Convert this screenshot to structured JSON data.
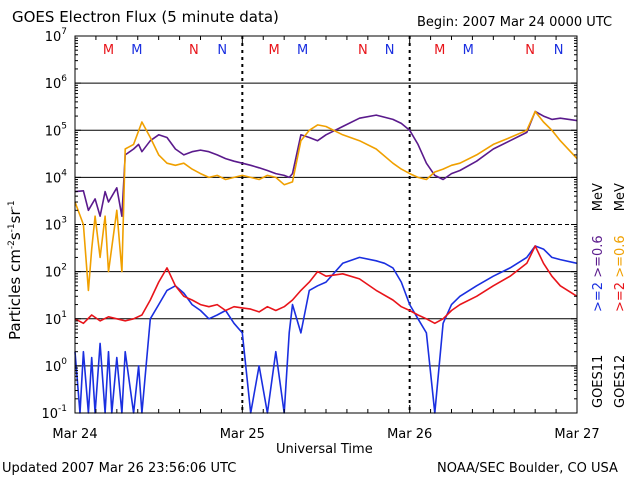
{
  "header": {
    "title": "GOES Electron Flux (5 minute data)",
    "begin": "Begin: 2007 Mar 24 0000 UTC"
  },
  "footer": {
    "updated": "Updated 2007 Mar 26 23:56:06 UTC",
    "credit": "NOAA/SEC Boulder, CO USA"
  },
  "legend": {
    "goes11": "GOES11",
    "goes12": "GOES12",
    "mev_lo": "MeV",
    "mev_hi": "MeV",
    "ch2_blue": ">=2",
    "ch06_purple": ">=0.6",
    "ch2_red": ">=2",
    "ch06_orange": ">=0.6"
  },
  "colors": {
    "goes11_high": "#1a2fe0",
    "goes11_low": "#5a1a8c",
    "goes12_high": "#e8141a",
    "goes12_low": "#f0a000",
    "marker_m": "#e8141a",
    "marker_n": "#1a2fe0"
  },
  "chart_data": {
    "type": "line",
    "title": "GOES Electron Flux (5 minute data)",
    "xlabel": "Universal Time",
    "ylabel": "Particles cm-2s-1sr-1",
    "x_unit": "days since 2007 Mar 24 0000 UTC",
    "xlim": [
      0,
      3
    ],
    "ylim_log10": [
      -1,
      7
    ],
    "y_scale": "log",
    "x_ticks": [
      {
        "x": 0,
        "label": "Mar 24"
      },
      {
        "x": 1,
        "label": "Mar 25"
      },
      {
        "x": 2,
        "label": "Mar 26"
      },
      {
        "x": 3,
        "label": "Mar 27"
      }
    ],
    "y_ticks": [
      {
        "exp": -1,
        "base": "10",
        "sup": "-1"
      },
      {
        "exp": 0,
        "base": "10",
        "sup": "0"
      },
      {
        "exp": 1,
        "base": "10",
        "sup": "1"
      },
      {
        "exp": 2,
        "base": "10",
        "sup": "2"
      },
      {
        "exp": 3,
        "base": "10",
        "sup": "3"
      },
      {
        "exp": 4,
        "base": "10",
        "sup": "4"
      },
      {
        "exp": 5,
        "base": "10",
        "sup": "5"
      },
      {
        "exp": 6,
        "base": "10",
        "sup": "6"
      },
      {
        "exp": 7,
        "base": "10",
        "sup": "7"
      }
    ],
    "grid": true,
    "markers": [
      {
        "x": 0.2,
        "label": "M",
        "color": "#e8141a"
      },
      {
        "x": 0.37,
        "label": "M",
        "color": "#1a2fe0"
      },
      {
        "x": 0.71,
        "label": "N",
        "color": "#e8141a"
      },
      {
        "x": 0.88,
        "label": "N",
        "color": "#1a2fe0"
      },
      {
        "x": 1.19,
        "label": "M",
        "color": "#e8141a"
      },
      {
        "x": 1.36,
        "label": "M",
        "color": "#1a2fe0"
      },
      {
        "x": 1.72,
        "label": "N",
        "color": "#e8141a"
      },
      {
        "x": 1.88,
        "label": "N",
        "color": "#1a2fe0"
      },
      {
        "x": 2.18,
        "label": "M",
        "color": "#e8141a"
      },
      {
        "x": 2.35,
        "label": "M",
        "color": "#1a2fe0"
      },
      {
        "x": 2.72,
        "label": "N",
        "color": "#e8141a"
      },
      {
        "x": 2.89,
        "label": "N",
        "color": "#1a2fe0"
      }
    ],
    "series": [
      {
        "name": "GOES11 >=0.6 MeV",
        "color": "#5a1a8c",
        "x": [
          0,
          0.05,
          0.08,
          0.12,
          0.15,
          0.18,
          0.2,
          0.25,
          0.28,
          0.3,
          0.35,
          0.38,
          0.4,
          0.45,
          0.5,
          0.55,
          0.6,
          0.65,
          0.7,
          0.75,
          0.8,
          0.85,
          0.9,
          0.95,
          1.0,
          1.05,
          1.1,
          1.15,
          1.2,
          1.25,
          1.28,
          1.3,
          1.35,
          1.4,
          1.45,
          1.5,
          1.6,
          1.7,
          1.8,
          1.9,
          1.95,
          2.0,
          2.05,
          2.1,
          2.15,
          2.2,
          2.25,
          2.3,
          2.4,
          2.5,
          2.6,
          2.7,
          2.75,
          2.8,
          2.85,
          2.9,
          3.0
        ],
        "y": [
          5000,
          5200,
          2000,
          3500,
          1500,
          5000,
          3000,
          6000,
          1500,
          30000,
          40000,
          50000,
          35000,
          60000,
          80000,
          70000,
          40000,
          30000,
          35000,
          38000,
          35000,
          30000,
          25000,
          22000,
          20000,
          18000,
          16000,
          14000,
          12000,
          11000,
          10000,
          12000,
          80000,
          70000,
          60000,
          80000,
          120000,
          180000,
          210000,
          170000,
          140000,
          100000,
          50000,
          20000,
          11000,
          9000,
          12000,
          14000,
          22000,
          40000,
          60000,
          90000,
          250000,
          200000,
          170000,
          180000,
          160000
        ]
      },
      {
        "name": "GOES12 >=0.6 MeV",
        "color": "#f0a000",
        "x": [
          0,
          0.05,
          0.08,
          0.1,
          0.12,
          0.15,
          0.18,
          0.2,
          0.25,
          0.28,
          0.3,
          0.35,
          0.4,
          0.45,
          0.5,
          0.55,
          0.6,
          0.65,
          0.7,
          0.75,
          0.8,
          0.85,
          0.9,
          0.95,
          1.0,
          1.05,
          1.1,
          1.15,
          1.2,
          1.25,
          1.3,
          1.35,
          1.4,
          1.45,
          1.5,
          1.6,
          1.7,
          1.8,
          1.9,
          1.95,
          2.0,
          2.05,
          2.1,
          2.15,
          2.2,
          2.25,
          2.3,
          2.4,
          2.5,
          2.6,
          2.7,
          2.75,
          2.8,
          2.85,
          2.9,
          3.0
        ],
        "y": [
          3000,
          1000,
          40,
          300,
          1500,
          200,
          1500,
          100,
          2000,
          100,
          40000,
          50000,
          150000,
          70000,
          30000,
          20000,
          18000,
          20000,
          15000,
          12000,
          10000,
          11000,
          9000,
          10000,
          11000,
          10000,
          9000,
          11000,
          10000,
          7000,
          8000,
          60000,
          100000,
          130000,
          120000,
          80000,
          60000,
          40000,
          20000,
          15000,
          12000,
          10000,
          9000,
          13000,
          15000,
          18000,
          20000,
          30000,
          50000,
          70000,
          100000,
          250000,
          150000,
          100000,
          60000,
          25000
        ]
      },
      {
        "name": "GOES11 >=2 MeV",
        "color": "#1a2fe0",
        "x": [
          0,
          0.03,
          0.05,
          0.08,
          0.1,
          0.12,
          0.15,
          0.18,
          0.2,
          0.22,
          0.25,
          0.28,
          0.3,
          0.35,
          0.38,
          0.4,
          0.45,
          0.5,
          0.55,
          0.6,
          0.65,
          0.7,
          0.75,
          0.8,
          0.85,
          0.9,
          0.95,
          1.0,
          1.05,
          1.1,
          1.15,
          1.2,
          1.25,
          1.28,
          1.3,
          1.35,
          1.4,
          1.45,
          1.5,
          1.6,
          1.7,
          1.8,
          1.85,
          1.9,
          1.95,
          2.0,
          2.05,
          2.1,
          2.15,
          2.2,
          2.25,
          2.3,
          2.4,
          2.5,
          2.6,
          2.7,
          2.75,
          2.8,
          2.85,
          2.9,
          3.0
        ],
        "y": [
          2,
          0.1,
          2,
          0.1,
          1.5,
          0.1,
          3,
          0.1,
          2,
          0.1,
          1.5,
          0.1,
          2,
          0.1,
          1,
          0.1,
          10,
          20,
          40,
          50,
          35,
          20,
          15,
          10,
          12,
          15,
          8,
          5,
          0.1,
          1,
          0.1,
          2,
          0.1,
          5,
          20,
          5,
          40,
          50,
          60,
          150,
          200,
          170,
          150,
          120,
          60,
          20,
          10,
          5,
          0.1,
          8,
          20,
          30,
          50,
          80,
          120,
          200,
          350,
          300,
          200,
          180,
          150
        ]
      },
      {
        "name": "GOES12 >=2 MeV",
        "color": "#e8141a",
        "x": [
          0,
          0.05,
          0.1,
          0.15,
          0.2,
          0.25,
          0.3,
          0.35,
          0.4,
          0.45,
          0.5,
          0.55,
          0.6,
          0.65,
          0.7,
          0.75,
          0.8,
          0.85,
          0.9,
          0.95,
          1.0,
          1.05,
          1.1,
          1.15,
          1.2,
          1.25,
          1.3,
          1.35,
          1.4,
          1.45,
          1.5,
          1.6,
          1.7,
          1.8,
          1.9,
          1.95,
          2.0,
          2.05,
          2.1,
          2.15,
          2.2,
          2.25,
          2.3,
          2.4,
          2.5,
          2.6,
          2.7,
          2.75,
          2.8,
          2.85,
          2.9,
          3.0
        ],
        "y": [
          10,
          8,
          12,
          9,
          11,
          10,
          9,
          10,
          12,
          25,
          60,
          120,
          50,
          30,
          25,
          20,
          18,
          20,
          15,
          18,
          17,
          16,
          14,
          18,
          15,
          18,
          25,
          40,
          60,
          100,
          80,
          90,
          70,
          40,
          25,
          18,
          15,
          12,
          10,
          8,
          10,
          15,
          20,
          30,
          50,
          80,
          150,
          350,
          150,
          80,
          50,
          30
        ]
      }
    ]
  }
}
